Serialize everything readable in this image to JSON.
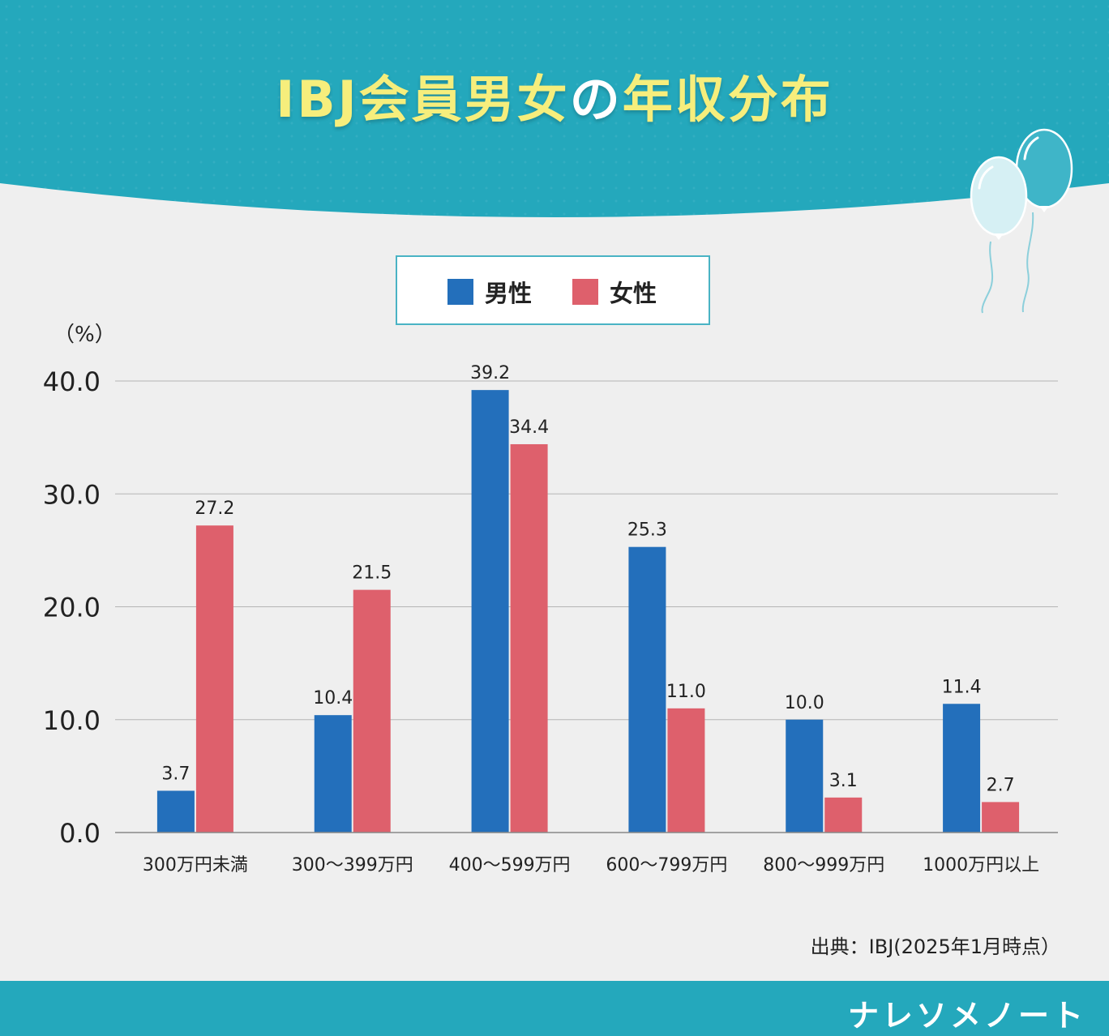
{
  "title": {
    "part1": "IBJ会員男女",
    "part2": "の",
    "part3": "年収分布"
  },
  "colors": {
    "male": "#236fbb",
    "female": "#de606c",
    "teal": "#24a8bc",
    "title_yellow": "#f6ee7c"
  },
  "legend": {
    "male": "男性",
    "female": "女性"
  },
  "unit_label": "（%）",
  "source": "出典：IBJ(2025年1月時点）",
  "brand": "ナレソメノート",
  "chart_data": {
    "type": "bar",
    "categories": [
      "300万円未満",
      "300〜399万円",
      "400〜599万円",
      "600〜799万円",
      "800〜999万円",
      "1000万円以上"
    ],
    "series": [
      {
        "name": "男性",
        "values": [
          3.7,
          10.4,
          39.2,
          25.3,
          10.0,
          11.4
        ]
      },
      {
        "name": "女性",
        "values": [
          27.2,
          21.5,
          34.4,
          11.0,
          3.1,
          2.7
        ]
      }
    ],
    "value_labels": [
      [
        "3.7",
        "10.4",
        "39.2",
        "25.3",
        "10.0",
        "11.4"
      ],
      [
        "27.2",
        "21.5",
        "34.4",
        "11.0",
        "3.1",
        "2.7"
      ]
    ],
    "ylim": [
      0,
      40
    ],
    "yticks": [
      "0.0",
      "10.0",
      "20.0",
      "30.0",
      "40.0"
    ],
    "grid": true,
    "legend_position": "top"
  }
}
